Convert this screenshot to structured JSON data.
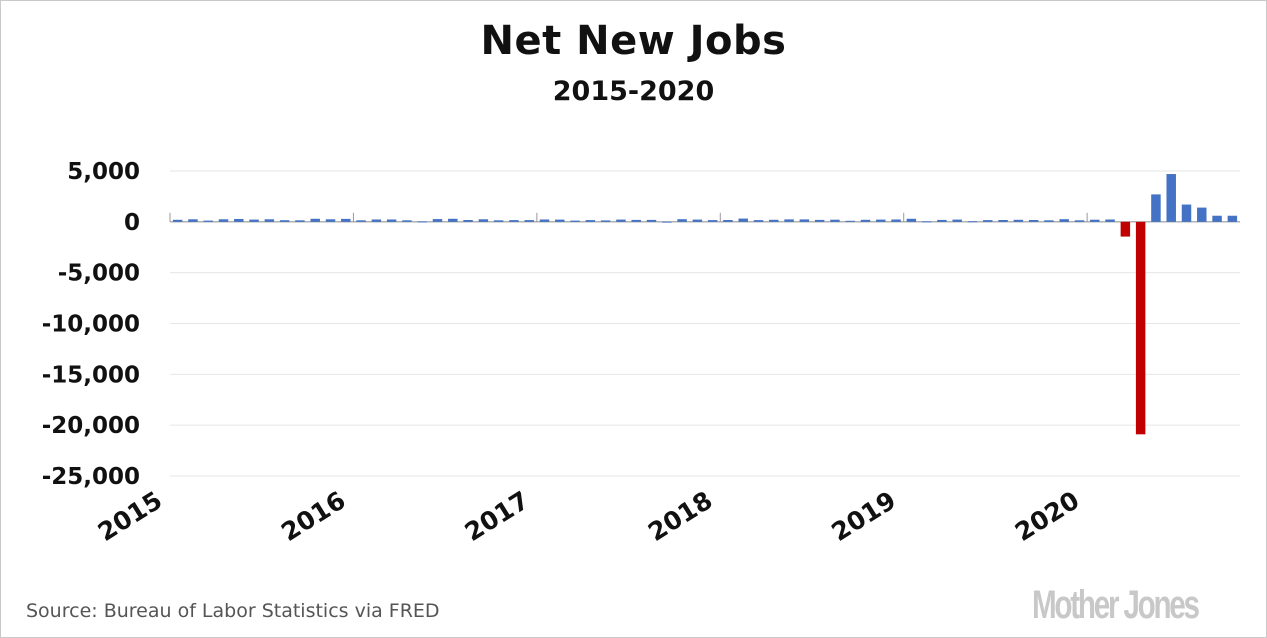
{
  "title": "Net New Jobs",
  "subtitle": "2015-2020",
  "source": "Source: Bureau of Labor Statistics via FRED",
  "logo": "Mother Jones",
  "colors": {
    "positive": "#4472c4",
    "negative": "#c00000",
    "grid": "#e6e6e6",
    "axis": "#999999",
    "text": "#111111"
  },
  "chart_data": {
    "type": "bar",
    "title": "Net New Jobs",
    "subtitle": "2015-2020",
    "xlabel": "",
    "ylabel": "",
    "ylim": [
      -25000,
      5000
    ],
    "ytick_values": [
      5000,
      0,
      -5000,
      -10000,
      -15000,
      -20000,
      -25000
    ],
    "ytick_labels": [
      "5,000",
      "0",
      "-5,000",
      "-10,000",
      "-15,000",
      "-20,000",
      "-25,000"
    ],
    "xtick_labels": [
      "2015",
      "2016",
      "2017",
      "2018",
      "2019",
      "2020"
    ],
    "grid": "horizontal",
    "positive_color": "#4472c4",
    "negative_color": "#c00000",
    "start": "2015-01",
    "categories": [
      "2015-01",
      "2015-02",
      "2015-03",
      "2015-04",
      "2015-05",
      "2015-06",
      "2015-07",
      "2015-08",
      "2015-09",
      "2015-10",
      "2015-11",
      "2015-12",
      "2016-01",
      "2016-02",
      "2016-03",
      "2016-04",
      "2016-05",
      "2016-06",
      "2016-07",
      "2016-08",
      "2016-09",
      "2016-10",
      "2016-11",
      "2016-12",
      "2017-01",
      "2017-02",
      "2017-03",
      "2017-04",
      "2017-05",
      "2017-06",
      "2017-07",
      "2017-08",
      "2017-09",
      "2017-10",
      "2017-11",
      "2017-12",
      "2018-01",
      "2018-02",
      "2018-03",
      "2018-04",
      "2018-05",
      "2018-06",
      "2018-07",
      "2018-08",
      "2018-09",
      "2018-10",
      "2018-11",
      "2018-12",
      "2019-01",
      "2019-02",
      "2019-03",
      "2019-04",
      "2019-05",
      "2019-06",
      "2019-07",
      "2019-08",
      "2019-09",
      "2019-10",
      "2019-11",
      "2019-12",
      "2020-01",
      "2020-02",
      "2020-03",
      "2020-04",
      "2020-05",
      "2020-06",
      "2020-07",
      "2020-08",
      "2020-09",
      "2020-10"
    ],
    "values": [
      200,
      250,
      120,
      250,
      280,
      220,
      250,
      160,
      150,
      300,
      250,
      290,
      150,
      230,
      230,
      150,
      40,
      270,
      300,
      180,
      250,
      150,
      170,
      170,
      230,
      220,
      120,
      170,
      140,
      220,
      190,
      190,
      20,
      260,
      220,
      170,
      180,
      320,
      170,
      200,
      240,
      240,
      190,
      210,
      100,
      200,
      220,
      230,
      300,
      50,
      190,
      220,
      60,
      170,
      180,
      200,
      180,
      150,
      260,
      150,
      210,
      230,
      -1450,
      -20900,
      2700,
      4700,
      1700,
      1400,
      600,
      600
    ]
  }
}
